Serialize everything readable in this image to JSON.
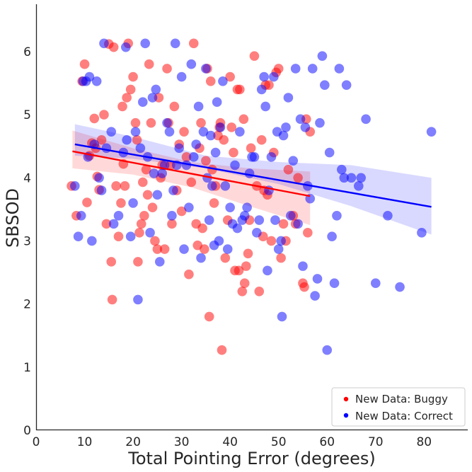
{
  "chart_data": {
    "type": "scatter",
    "title": "",
    "xlabel": "Total Pointing Error (degrees)",
    "ylabel": "SBSOD",
    "xlim": [
      0,
      89
    ],
    "ylim": [
      0,
      6.75
    ],
    "xticks": [
      0,
      10,
      20,
      30,
      40,
      50,
      60,
      70,
      80
    ],
    "yticks": [
      0,
      1,
      2,
      3,
      4,
      5,
      6
    ],
    "grid": false,
    "legend_position": "lower-right",
    "series": [
      {
        "name": "New Data: Buggy",
        "color": "#ff0000",
        "points": [
          [
            7.3,
            3.87
          ],
          [
            8.3,
            3.4
          ],
          [
            9.5,
            5.53
          ],
          [
            10.0,
            5.8
          ],
          [
            10.5,
            3.61
          ],
          [
            11.0,
            4.35
          ],
          [
            11.5,
            4.55
          ],
          [
            12.0,
            4.94
          ],
          [
            12.3,
            4.47
          ],
          [
            12.6,
            4.02
          ],
          [
            13.0,
            3.81
          ],
          [
            13.5,
            4.6
          ],
          [
            14.0,
            5.0
          ],
          [
            14.5,
            3.27
          ],
          [
            15.0,
            6.12
          ],
          [
            15.5,
            2.67
          ],
          [
            15.7,
            2.07
          ],
          [
            16.0,
            6.07
          ],
          [
            16.5,
            3.87
          ],
          [
            17.0,
            3.07
          ],
          [
            17.5,
            3.6
          ],
          [
            17.8,
            5.13
          ],
          [
            18.0,
            4.22
          ],
          [
            18.3,
            3.87
          ],
          [
            18.7,
            5.27
          ],
          [
            19.0,
            6.13
          ],
          [
            19.5,
            5.4
          ],
          [
            20.0,
            5.6
          ],
          [
            20.5,
            4.87
          ],
          [
            20.8,
            4.6
          ],
          [
            21.0,
            2.67
          ],
          [
            21.3,
            3.13
          ],
          [
            21.7,
            3.27
          ],
          [
            22.0,
            3.93
          ],
          [
            22.3,
            3.4
          ],
          [
            22.7,
            4.13
          ],
          [
            23.0,
            3.73
          ],
          [
            23.3,
            5.8
          ],
          [
            23.7,
            4.87
          ],
          [
            24.0,
            3.53
          ],
          [
            24.5,
            3.0
          ],
          [
            25.0,
            2.87
          ],
          [
            25.3,
            5.27
          ],
          [
            25.7,
            4.0
          ],
          [
            26.0,
            4.2
          ],
          [
            26.5,
            2.87
          ],
          [
            27.0,
            5.73
          ],
          [
            27.3,
            4.87
          ],
          [
            27.7,
            4.2
          ],
          [
            28.0,
            3.27
          ],
          [
            28.5,
            5.13
          ],
          [
            29.0,
            3.8
          ],
          [
            29.5,
            4.53
          ],
          [
            30.0,
            3.47
          ],
          [
            30.5,
            4.73
          ],
          [
            31.0,
            4.33
          ],
          [
            31.5,
            2.47
          ],
          [
            32.0,
            3.93
          ],
          [
            32.5,
            6.13
          ],
          [
            33.0,
            3.27
          ],
          [
            33.3,
            2.93
          ],
          [
            33.7,
            4.47
          ],
          [
            34.0,
            4.87
          ],
          [
            34.3,
            3.2
          ],
          [
            34.7,
            2.87
          ],
          [
            35.0,
            4.27
          ],
          [
            35.3,
            5.73
          ],
          [
            35.7,
            1.8
          ],
          [
            36.0,
            5.53
          ],
          [
            36.3,
            4.13
          ],
          [
            36.7,
            3.6
          ],
          [
            37.0,
            3.87
          ],
          [
            37.5,
            4.67
          ],
          [
            37.8,
            4.8
          ],
          [
            38.0,
            4.87
          ],
          [
            38.3,
            1.27
          ],
          [
            38.7,
            4.6
          ],
          [
            39.0,
            2.73
          ],
          [
            39.5,
            3.33
          ],
          [
            40.0,
            5.6
          ],
          [
            40.3,
            4.8
          ],
          [
            40.7,
            4.4
          ],
          [
            41.0,
            2.53
          ],
          [
            41.5,
            5.4
          ],
          [
            41.8,
            2.53
          ],
          [
            42.0,
            5.4
          ],
          [
            42.5,
            2.2
          ],
          [
            42.8,
            4.93
          ],
          [
            43.0,
            2.33
          ],
          [
            43.3,
            2.6
          ],
          [
            43.7,
            2.8
          ],
          [
            44.0,
            3.33
          ],
          [
            44.3,
            4.47
          ],
          [
            45.0,
            5.93
          ],
          [
            45.5,
            3.87
          ],
          [
            46.0,
            2.2
          ],
          [
            46.5,
            4.6
          ],
          [
            46.8,
            3.07
          ],
          [
            47.0,
            3.8
          ],
          [
            47.3,
            5.47
          ],
          [
            47.7,
            3.73
          ],
          [
            48.0,
            5.47
          ],
          [
            48.5,
            3.0
          ],
          [
            49.0,
            4.4
          ],
          [
            49.5,
            5.67
          ],
          [
            50.0,
            5.73
          ],
          [
            50.5,
            2.73
          ],
          [
            51.0,
            3.27
          ],
          [
            51.5,
            3.0
          ],
          [
            52.0,
            4.13
          ],
          [
            53.0,
            3.4
          ],
          [
            53.5,
            3.27
          ],
          [
            54.0,
            4.0
          ],
          [
            55.0,
            2.33
          ],
          [
            55.3,
            2.27
          ],
          [
            55.7,
            4.93
          ],
          [
            56.0,
            3.13
          ],
          [
            56.5,
            4.73
          ]
        ],
        "regression": {
          "x": [
            7.5,
            56.5
          ],
          "y": [
            4.42,
            3.71
          ]
        },
        "ci_band": {
          "x": [
            7.5,
            20,
            32,
            44,
            56.5
          ],
          "lower": [
            4.15,
            4.05,
            3.85,
            3.55,
            3.25
          ],
          "upper": [
            4.75,
            4.47,
            4.25,
            4.15,
            4.1
          ]
        }
      },
      {
        "name": "New Data: Correct",
        "color": "#0000ff",
        "points": [
          [
            8.0,
            3.87
          ],
          [
            8.7,
            3.07
          ],
          [
            9.3,
            3.4
          ],
          [
            9.7,
            5.53
          ],
          [
            10.3,
            5.53
          ],
          [
            10.7,
            4.33
          ],
          [
            11.0,
            5.6
          ],
          [
            11.5,
            3.0
          ],
          [
            12.0,
            4.53
          ],
          [
            12.5,
            5.53
          ],
          [
            13.0,
            4.0
          ],
          [
            13.5,
            3.8
          ],
          [
            14.0,
            6.13
          ],
          [
            14.5,
            4.47
          ],
          [
            15.5,
            4.73
          ],
          [
            16.0,
            3.27
          ],
          [
            17.0,
            3.4
          ],
          [
            18.0,
            4.4
          ],
          [
            18.5,
            6.07
          ],
          [
            18.7,
            4.6
          ],
          [
            19.5,
            3.07
          ],
          [
            20.0,
            3.6
          ],
          [
            20.5,
            4.73
          ],
          [
            21.0,
            2.07
          ],
          [
            21.5,
            4.47
          ],
          [
            22.0,
            5.2
          ],
          [
            22.5,
            6.13
          ],
          [
            23.0,
            4.33
          ],
          [
            23.5,
            3.13
          ],
          [
            24.0,
            5.27
          ],
          [
            24.3,
            4.07
          ],
          [
            24.7,
            5.4
          ],
          [
            25.0,
            3.73
          ],
          [
            25.5,
            2.67
          ],
          [
            26.0,
            4.07
          ],
          [
            26.5,
            4.2
          ],
          [
            27.0,
            4.87
          ],
          [
            27.5,
            4.73
          ],
          [
            28.0,
            3.4
          ],
          [
            28.3,
            3.8
          ],
          [
            28.7,
            6.13
          ],
          [
            29.0,
            4.2
          ],
          [
            29.5,
            4.47
          ],
          [
            30.0,
            5.6
          ],
          [
            30.5,
            2.87
          ],
          [
            31.0,
            4.2
          ],
          [
            31.5,
            3.53
          ],
          [
            32.0,
            5.8
          ],
          [
            32.5,
            4.33
          ],
          [
            33.0,
            4.53
          ],
          [
            33.5,
            5.13
          ],
          [
            34.0,
            2.73
          ],
          [
            34.5,
            4.73
          ],
          [
            35.0,
            5.73
          ],
          [
            35.3,
            4.0
          ],
          [
            35.7,
            3.33
          ],
          [
            36.0,
            4.67
          ],
          [
            36.3,
            3.87
          ],
          [
            36.7,
            2.93
          ],
          [
            37.0,
            4.4
          ],
          [
            37.3,
            5.2
          ],
          [
            37.7,
            3.0
          ],
          [
            38.0,
            4.8
          ],
          [
            38.5,
            5.53
          ],
          [
            39.0,
            3.87
          ],
          [
            39.5,
            2.87
          ],
          [
            40.0,
            3.53
          ],
          [
            40.5,
            3.27
          ],
          [
            41.0,
            4.2
          ],
          [
            41.5,
            3.2
          ],
          [
            42.0,
            4.73
          ],
          [
            42.5,
            3.33
          ],
          [
            43.0,
            3.4
          ],
          [
            43.5,
            3.53
          ],
          [
            44.0,
            4.07
          ],
          [
            44.5,
            4.33
          ],
          [
            45.0,
            4.33
          ],
          [
            45.5,
            3.13
          ],
          [
            46.0,
            3.33
          ],
          [
            46.5,
            5.4
          ],
          [
            47.0,
            5.6
          ],
          [
            47.3,
            5.13
          ],
          [
            47.7,
            2.53
          ],
          [
            48.0,
            3.8
          ],
          [
            48.5,
            4.33
          ],
          [
            49.0,
            5.6
          ],
          [
            49.3,
            3.33
          ],
          [
            49.7,
            4.73
          ],
          [
            50.0,
            2.87
          ],
          [
            50.5,
            3.0
          ],
          [
            50.7,
            1.8
          ],
          [
            51.0,
            4.67
          ],
          [
            51.5,
            4.8
          ],
          [
            52.0,
            5.27
          ],
          [
            52.5,
            3.4
          ],
          [
            53.0,
            4.27
          ],
          [
            53.5,
            5.73
          ],
          [
            54.0,
            3.27
          ],
          [
            54.5,
            4.93
          ],
          [
            55.0,
            2.6
          ],
          [
            55.5,
            4.8
          ],
          [
            56.0,
            3.87
          ],
          [
            56.5,
            3.67
          ],
          [
            57.0,
            5.73
          ],
          [
            57.5,
            2.13
          ],
          [
            58.0,
            2.4
          ],
          [
            58.5,
            4.87
          ],
          [
            59.0,
            5.93
          ],
          [
            59.5,
            5.47
          ],
          [
            60.0,
            1.27
          ],
          [
            60.5,
            4.4
          ],
          [
            61.0,
            3.07
          ],
          [
            61.5,
            2.33
          ],
          [
            62.0,
            3.4
          ],
          [
            62.5,
            5.73
          ],
          [
            63.0,
            4.13
          ],
          [
            63.5,
            4.0
          ],
          [
            64.0,
            5.47
          ],
          [
            65.0,
            4.0
          ],
          [
            66.5,
            3.87
          ],
          [
            67.0,
            4.0
          ],
          [
            68.0,
            4.93
          ],
          [
            70.0,
            2.33
          ],
          [
            72.5,
            3.4
          ],
          [
            75.0,
            2.27
          ],
          [
            79.5,
            3.13
          ],
          [
            81.5,
            4.73
          ]
        ],
        "regression": {
          "x": [
            8,
            81.5
          ],
          "y": [
            4.53,
            3.54
          ]
        },
        "ci_band": {
          "x": [
            8,
            20,
            35,
            50,
            65,
            81.5
          ],
          "lower": [
            4.35,
            4.3,
            4.15,
            3.9,
            3.55,
            3.1
          ],
          "upper": [
            4.85,
            4.65,
            4.35,
            4.25,
            4.2,
            4.0
          ]
        }
      }
    ]
  }
}
